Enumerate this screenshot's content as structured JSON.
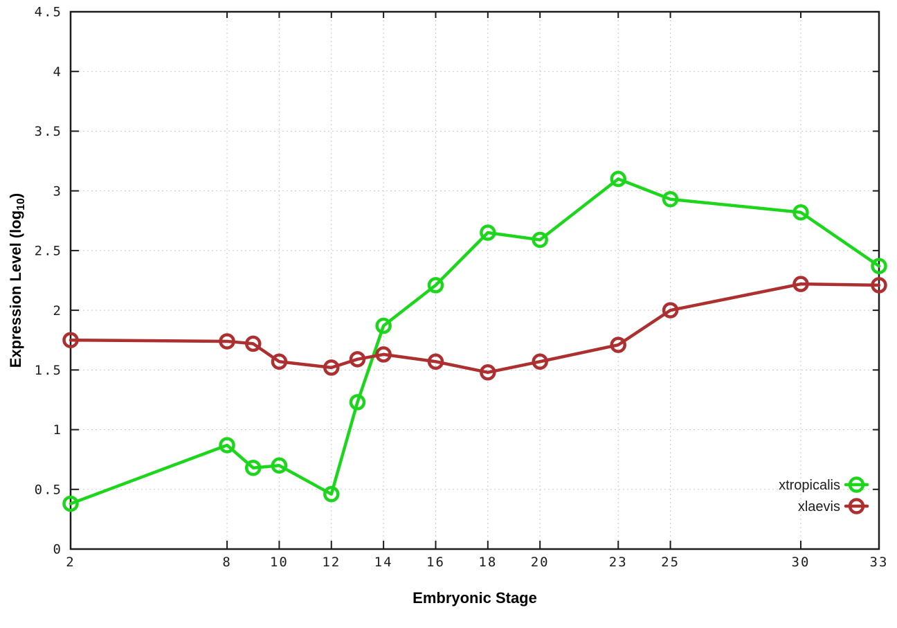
{
  "figure": {
    "background": "#ffffff",
    "xlabel": "Embryonic Stage",
    "ylabel_parts": {
      "main": "Expression Level (log",
      "sub": "10",
      "close": ")"
    }
  },
  "chart_data": {
    "type": "line",
    "title": "",
    "xlabel": "Embryonic Stage",
    "ylabel": "Expression Level (log10)",
    "xlim": [
      2,
      33
    ],
    "ylim": [
      0,
      4.5
    ],
    "grid": true,
    "legend_position": "bottom-right",
    "x_ticks": [
      2,
      8,
      10,
      12,
      14,
      16,
      18,
      20,
      23,
      25,
      30,
      33
    ],
    "x_tick_labels": [
      "2",
      "8",
      "10",
      "12",
      "14",
      "16",
      "18",
      "20",
      "23",
      "25",
      "30",
      "33"
    ],
    "y_ticks": [
      0,
      0.5,
      1,
      1.5,
      2,
      2.5,
      3,
      3.5,
      4,
      4.5
    ],
    "y_tick_labels": [
      "0",
      "0.5",
      "1",
      "1.5",
      "2",
      "2.5",
      "3",
      "3.5",
      "4",
      "4.5"
    ],
    "x": [
      2,
      8,
      9,
      10,
      12,
      13,
      14,
      16,
      18,
      20,
      23,
      25,
      30,
      33
    ],
    "series": [
      {
        "name": "xtropicalis",
        "color": "#1bd61b",
        "values": [
          0.38,
          0.87,
          0.68,
          0.7,
          0.46,
          1.23,
          1.87,
          2.21,
          2.65,
          2.59,
          3.1,
          2.93,
          2.82,
          2.37
        ]
      },
      {
        "name": "xlaevis",
        "color": "#ad2f2f",
        "values": [
          1.75,
          1.74,
          1.72,
          1.57,
          1.52,
          1.59,
          1.63,
          1.57,
          1.48,
          1.57,
          1.71,
          2.0,
          2.22,
          2.21
        ]
      }
    ],
    "axis_color": "#1c1c1c",
    "grid_color": "#c8c8c8"
  }
}
